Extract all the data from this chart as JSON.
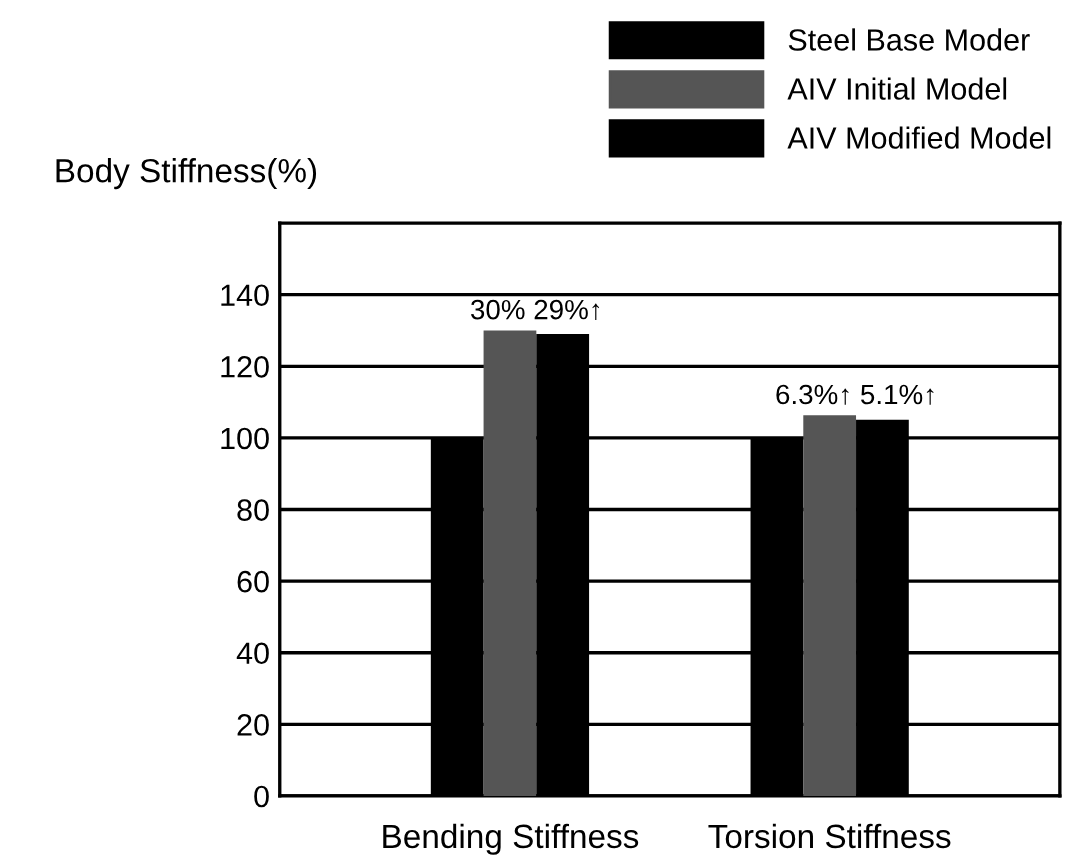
{
  "chart_data": {
    "type": "bar",
    "ylabel": "Body Stiffness(%)",
    "categories": [
      "Bending Stiffness",
      "Torsion Stiffness"
    ],
    "series": [
      {
        "name": "Steel Base Moder",
        "color": "#000000",
        "values": [
          100,
          100
        ]
      },
      {
        "name": "AIV Initial Model",
        "color": "#555555",
        "values": [
          130,
          106.3
        ]
      },
      {
        "name": "AIV Modified Model",
        "color": "#000000",
        "values": [
          129,
          105.1
        ]
      }
    ],
    "annotations": [
      {
        "text": "30% 29%↑",
        "x": "Bending Stiffness",
        "y": 130
      },
      {
        "text": "6.3%↑ 5.1%↑",
        "x": "Torsion Stiffness",
        "y": 106.3
      }
    ],
    "ylim": [
      0,
      160
    ],
    "yticks": [
      0,
      20,
      40,
      60,
      80,
      100,
      120,
      140
    ],
    "grid": "y",
    "legend": "top right"
  }
}
